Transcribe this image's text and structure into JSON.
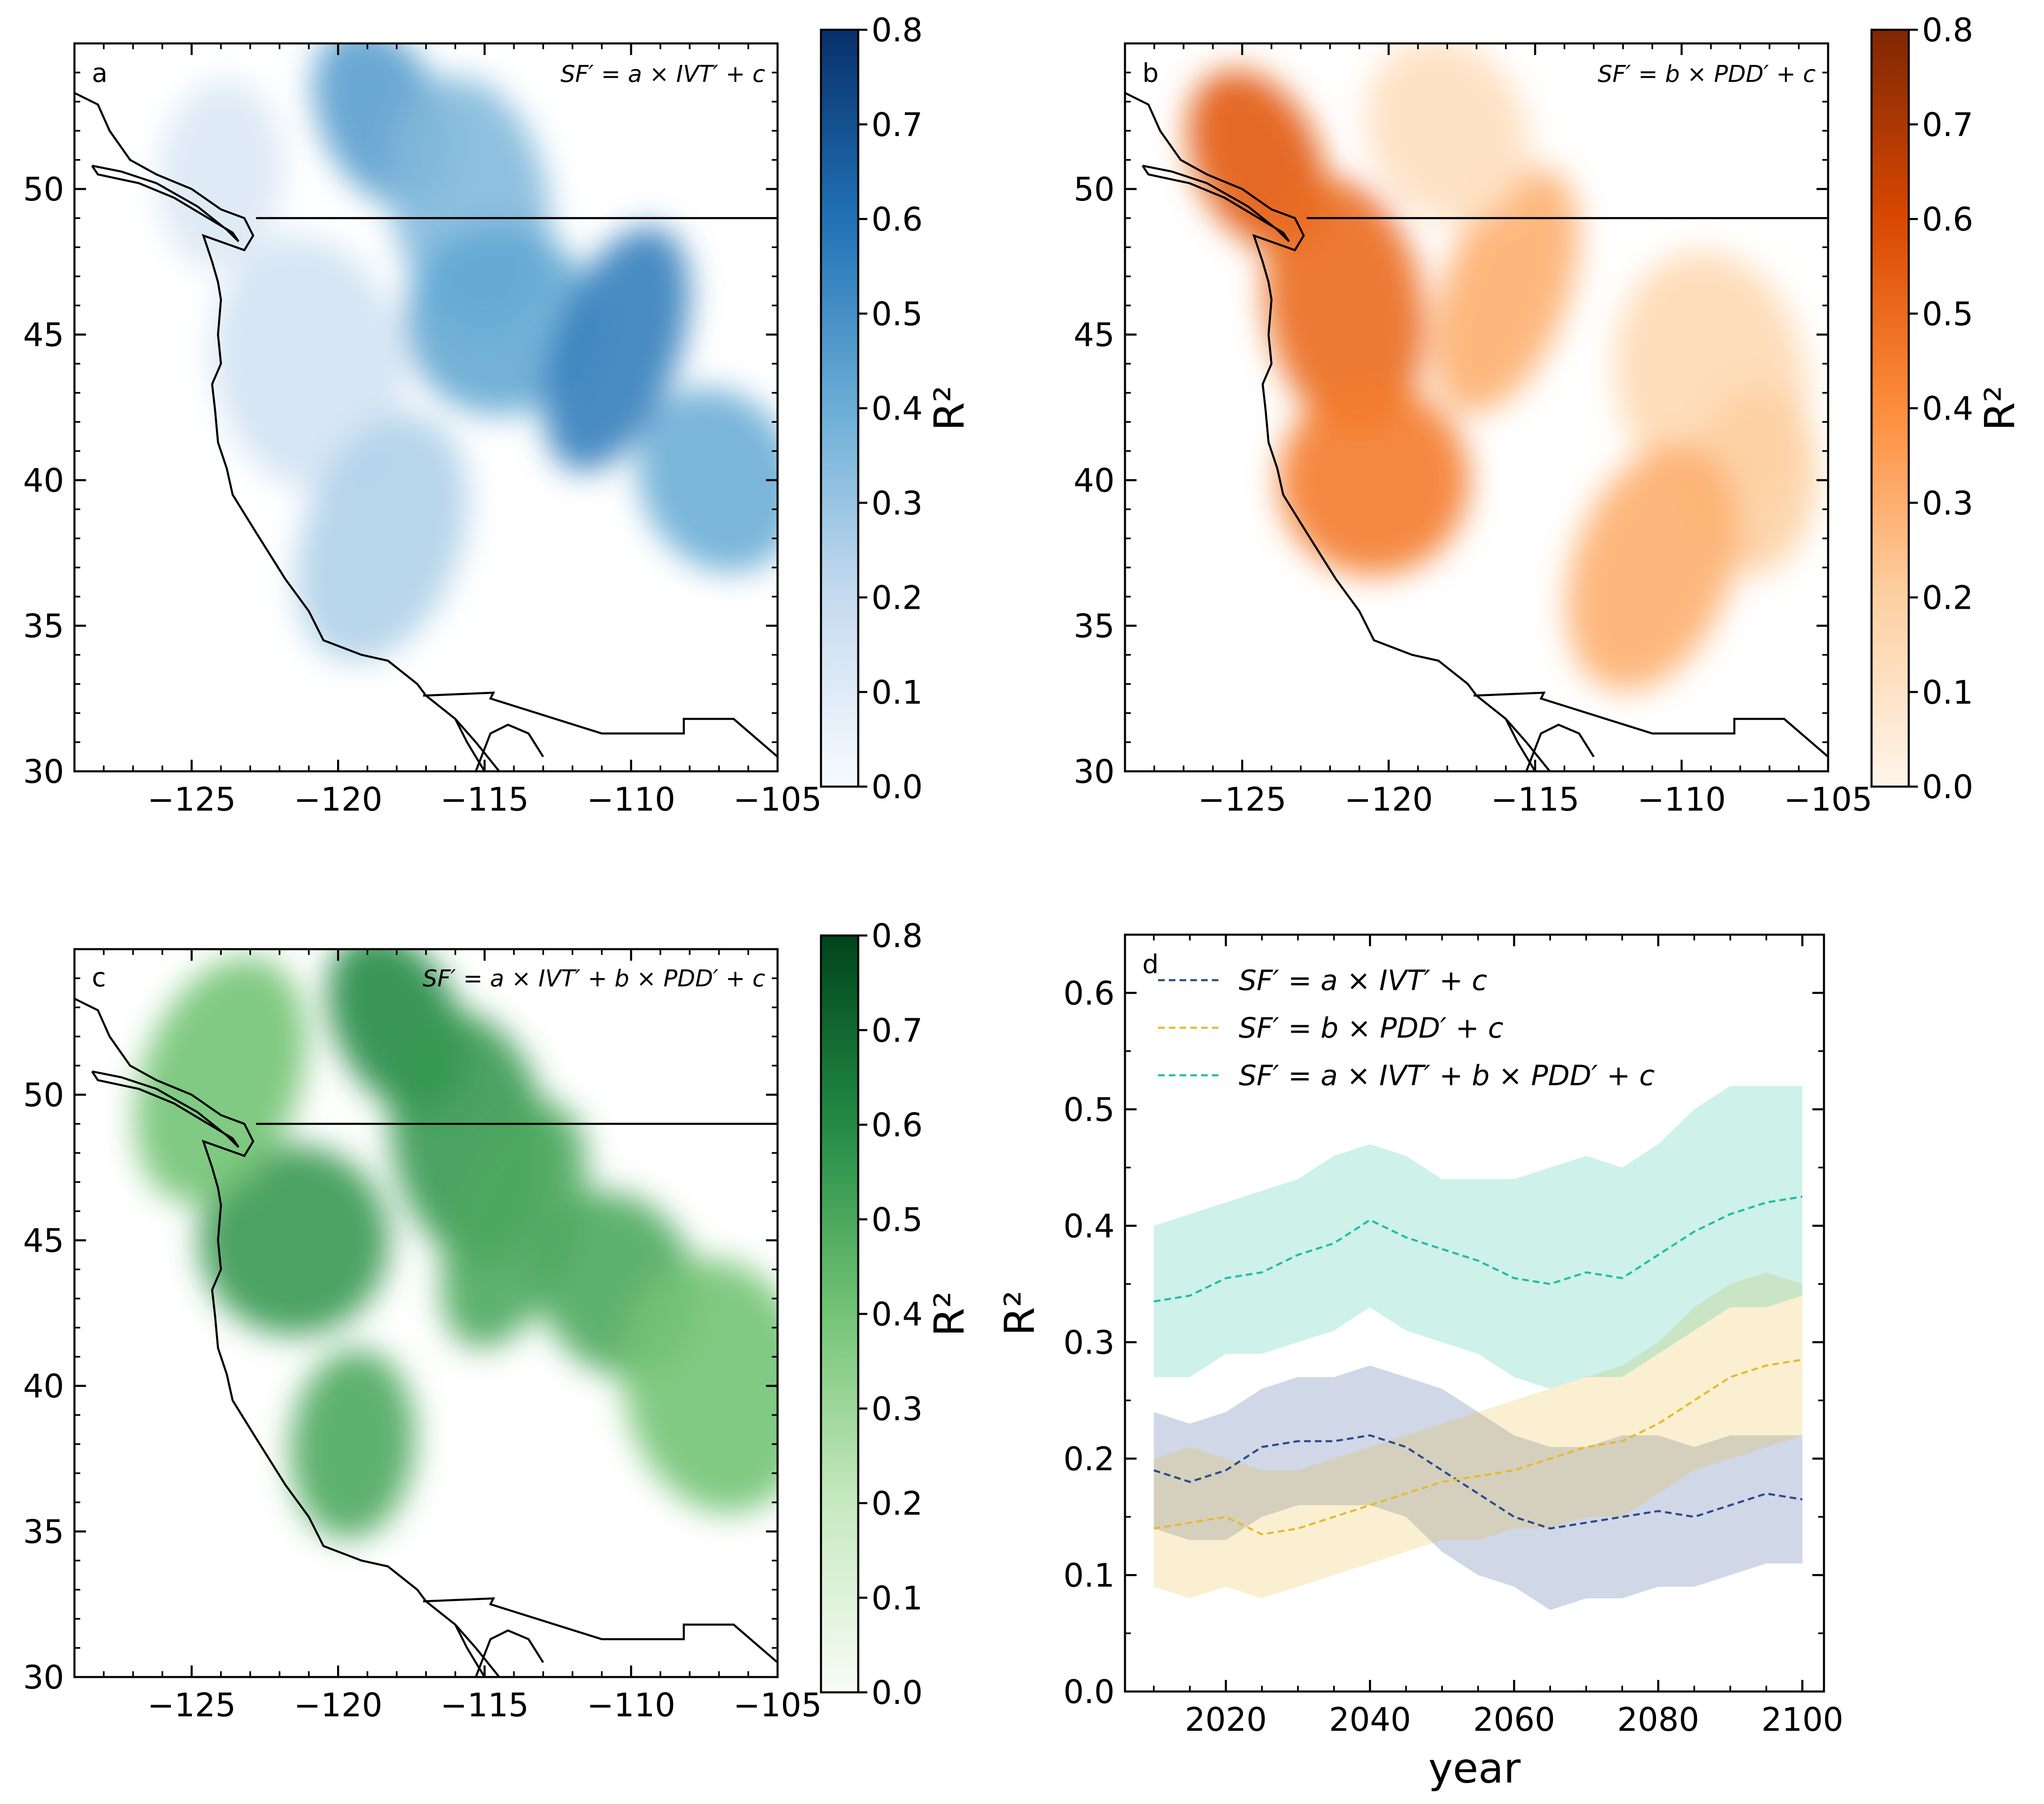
{
  "chart_data": [
    {
      "type": "heatmap",
      "panel": "a",
      "annotation": "SF′ = a × IVT′ + c",
      "xlim": [
        -129,
        -105
      ],
      "ylim": [
        30,
        55
      ],
      "xticks": [
        "−125",
        "−120",
        "−115",
        "−110",
        "−105"
      ],
      "yticks": [
        "30",
        "35",
        "40",
        "45",
        "50"
      ],
      "colorbar": {
        "label": "R²",
        "range": [
          0.0,
          0.8
        ],
        "ticks": [
          "0.0",
          "0.1",
          "0.2",
          "0.3",
          "0.4",
          "0.5",
          "0.6",
          "0.7",
          "0.8"
        ],
        "colormap": [
          "#f7fbff",
          "#c6dbef",
          "#6baed6",
          "#2171b5",
          "#08306b"
        ]
      },
      "regions": [
        {
          "lon": -118.5,
          "lat": 52.5,
          "value": 0.45
        },
        {
          "lon": -115.5,
          "lat": 49.5,
          "value": 0.35
        },
        {
          "lon": -114.5,
          "lat": 45.5,
          "value": 0.42
        },
        {
          "lon": -110.5,
          "lat": 44.5,
          "value": 0.55
        },
        {
          "lon": -107.0,
          "lat": 40.0,
          "value": 0.4
        },
        {
          "lon": -121.0,
          "lat": 44.0,
          "value": 0.15
        },
        {
          "lon": -124.0,
          "lat": 50.5,
          "value": 0.12
        },
        {
          "lon": -118.5,
          "lat": 38.0,
          "value": 0.25
        }
      ]
    },
    {
      "type": "heatmap",
      "panel": "b",
      "annotation": "SF′ = b × PDD′ + c",
      "xlim": [
        -129,
        -105
      ],
      "ylim": [
        30,
        55
      ],
      "xticks": [
        "−125",
        "−120",
        "−115",
        "−110",
        "−105"
      ],
      "yticks": [
        "30",
        "35",
        "40",
        "45",
        "50"
      ],
      "colorbar": {
        "label": "R²",
        "range": [
          0.0,
          0.8
        ],
        "ticks": [
          "0.0",
          "0.1",
          "0.2",
          "0.3",
          "0.4",
          "0.5",
          "0.6",
          "0.7",
          "0.8"
        ],
        "colormap": [
          "#fff5eb",
          "#fdd0a2",
          "#fd8d3c",
          "#d94801",
          "#7f2704"
        ]
      },
      "regions": [
        {
          "lon": -124.5,
          "lat": 51.0,
          "value": 0.55
        },
        {
          "lon": -121.5,
          "lat": 46.0,
          "value": 0.5
        },
        {
          "lon": -120.5,
          "lat": 40.0,
          "value": 0.45
        },
        {
          "lon": -116.0,
          "lat": 46.5,
          "value": 0.3
        },
        {
          "lon": -118.0,
          "lat": 52.0,
          "value": 0.12
        },
        {
          "lon": -109.0,
          "lat": 43.5,
          "value": 0.15
        },
        {
          "lon": -107.5,
          "lat": 40.0,
          "value": 0.2
        },
        {
          "lon": -111.0,
          "lat": 37.0,
          "value": 0.3
        }
      ]
    },
    {
      "type": "heatmap",
      "panel": "c",
      "annotation": "SF′ = a × IVT′ + b × PDD′ + c",
      "xlim": [
        -129,
        -105
      ],
      "ylim": [
        30,
        55
      ],
      "xticks": [
        "−125",
        "−120",
        "−115",
        "−110",
        "−105"
      ],
      "yticks": [
        "30",
        "35",
        "40",
        "45",
        "50"
      ],
      "colorbar": {
        "label": "R²",
        "range": [
          0.0,
          0.8
        ],
        "ticks": [
          "0.0",
          "0.1",
          "0.2",
          "0.3",
          "0.4",
          "0.5",
          "0.6",
          "0.7",
          "0.8"
        ],
        "colormap": [
          "#f7fcf5",
          "#c7e9c0",
          "#74c476",
          "#238b45",
          "#00441b"
        ]
      },
      "regions": [
        {
          "lon": -118.0,
          "lat": 52.5,
          "value": 0.6
        },
        {
          "lon": -115.5,
          "lat": 48.5,
          "value": 0.55
        },
        {
          "lon": -121.5,
          "lat": 45.0,
          "value": 0.55
        },
        {
          "lon": -114.0,
          "lat": 45.5,
          "value": 0.5
        },
        {
          "lon": -110.5,
          "lat": 43.5,
          "value": 0.5
        },
        {
          "lon": -107.0,
          "lat": 40.0,
          "value": 0.4
        },
        {
          "lon": -119.5,
          "lat": 38.0,
          "value": 0.5
        },
        {
          "lon": -124.0,
          "lat": 50.5,
          "value": 0.4
        }
      ]
    },
    {
      "type": "line",
      "panel": "d",
      "xlabel": "year",
      "ylabel": "R²",
      "xlim": [
        2006,
        2103
      ],
      "ylim": [
        0.0,
        0.65
      ],
      "xticks": [
        "2020",
        "2040",
        "2060",
        "2080",
        "2100"
      ],
      "yticks": [
        "0.0",
        "0.1",
        "0.2",
        "0.3",
        "0.4",
        "0.5",
        "0.6"
      ],
      "x": [
        2010,
        2015,
        2020,
        2025,
        2030,
        2035,
        2040,
        2045,
        2050,
        2055,
        2060,
        2065,
        2070,
        2075,
        2080,
        2085,
        2090,
        2095,
        2100
      ],
      "series": [
        {
          "name": "SF′ = a × IVT′ + c",
          "color": "#2b4a8e",
          "values": [
            0.19,
            0.18,
            0.19,
            0.21,
            0.215,
            0.215,
            0.22,
            0.21,
            0.19,
            0.17,
            0.15,
            0.14,
            0.145,
            0.15,
            0.155,
            0.15,
            0.16,
            0.17,
            0.165
          ],
          "lower": [
            0.14,
            0.13,
            0.13,
            0.15,
            0.16,
            0.16,
            0.16,
            0.15,
            0.12,
            0.1,
            0.09,
            0.07,
            0.08,
            0.08,
            0.09,
            0.09,
            0.1,
            0.11,
            0.11
          ],
          "upper": [
            0.24,
            0.23,
            0.24,
            0.26,
            0.27,
            0.27,
            0.28,
            0.27,
            0.26,
            0.24,
            0.22,
            0.21,
            0.21,
            0.22,
            0.22,
            0.21,
            0.22,
            0.22,
            0.22
          ]
        },
        {
          "name": "SF′ = b × PDD′ + c",
          "color": "#e8b92e",
          "values": [
            0.14,
            0.145,
            0.15,
            0.135,
            0.14,
            0.15,
            0.16,
            0.17,
            0.18,
            0.185,
            0.19,
            0.2,
            0.21,
            0.215,
            0.23,
            0.25,
            0.27,
            0.28,
            0.285
          ],
          "lower": [
            0.09,
            0.08,
            0.09,
            0.08,
            0.09,
            0.1,
            0.11,
            0.12,
            0.13,
            0.13,
            0.14,
            0.14,
            0.15,
            0.15,
            0.17,
            0.19,
            0.2,
            0.21,
            0.22
          ],
          "upper": [
            0.2,
            0.21,
            0.2,
            0.19,
            0.19,
            0.2,
            0.21,
            0.22,
            0.23,
            0.24,
            0.25,
            0.26,
            0.27,
            0.28,
            0.3,
            0.33,
            0.35,
            0.36,
            0.35
          ]
        },
        {
          "name": "SF′ = a × IVT′ + b × PDD′ + c",
          "color": "#1fbfa0",
          "values": [
            0.335,
            0.34,
            0.355,
            0.36,
            0.375,
            0.385,
            0.405,
            0.39,
            0.38,
            0.37,
            0.355,
            0.35,
            0.36,
            0.355,
            0.375,
            0.395,
            0.41,
            0.42,
            0.425
          ],
          "lower": [
            0.27,
            0.27,
            0.29,
            0.29,
            0.3,
            0.31,
            0.33,
            0.31,
            0.3,
            0.29,
            0.27,
            0.26,
            0.27,
            0.27,
            0.29,
            0.31,
            0.33,
            0.33,
            0.34
          ],
          "upper": [
            0.4,
            0.41,
            0.42,
            0.43,
            0.44,
            0.46,
            0.47,
            0.46,
            0.44,
            0.44,
            0.44,
            0.45,
            0.46,
            0.45,
            0.47,
            0.5,
            0.52,
            0.52,
            0.52
          ]
        }
      ]
    }
  ]
}
